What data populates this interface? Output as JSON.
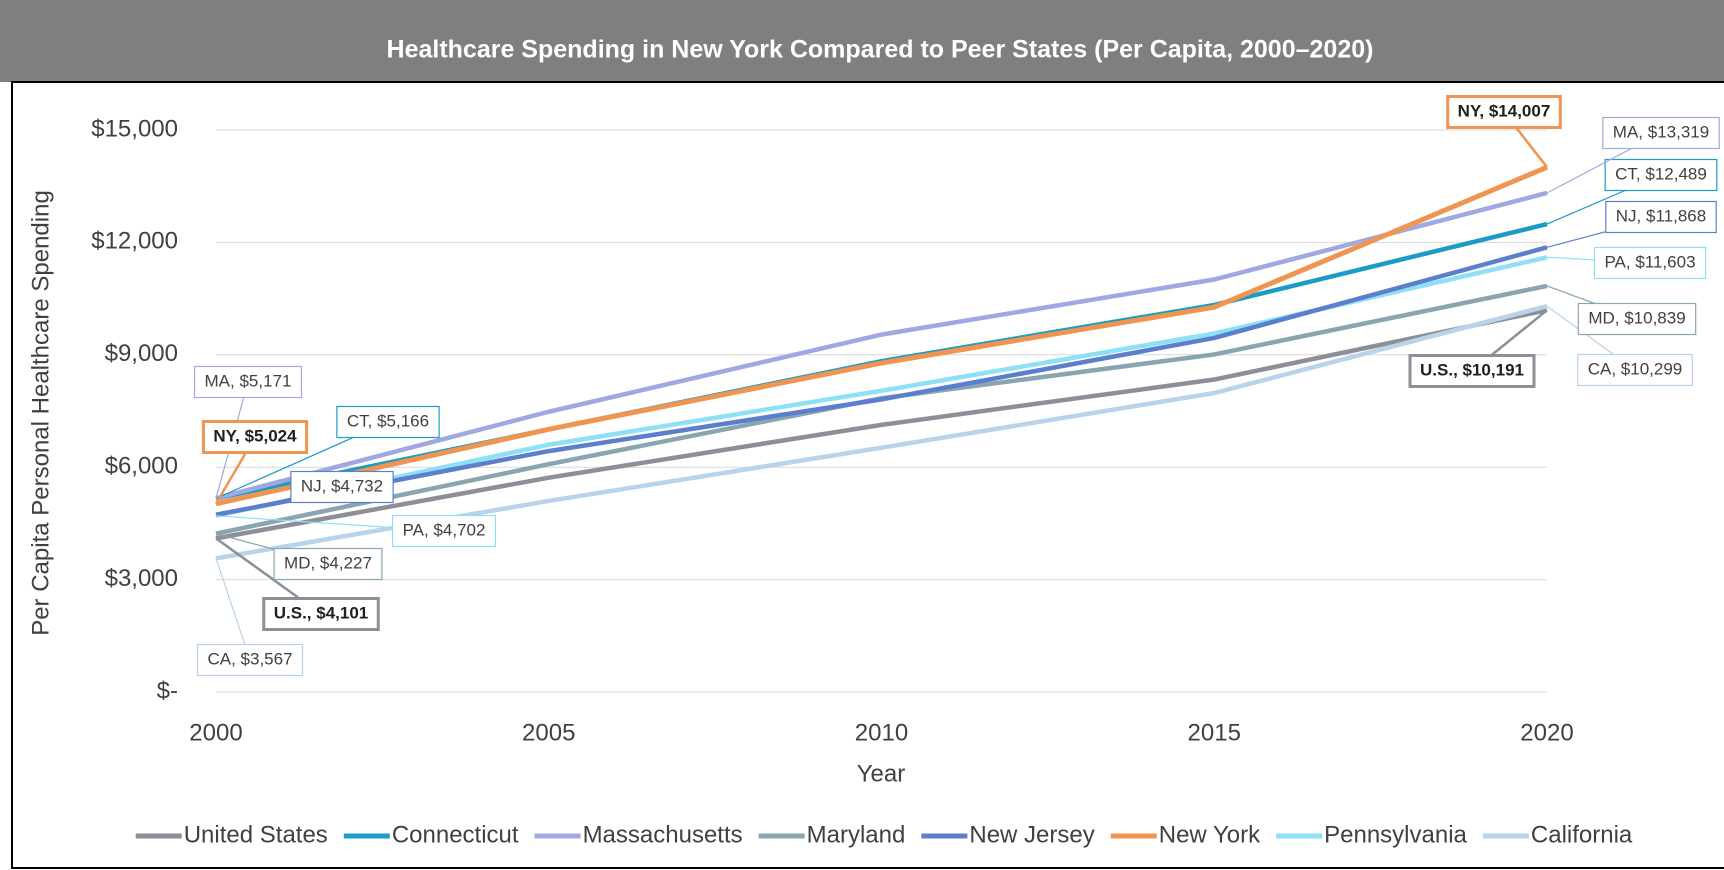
{
  "chart_data": {
    "type": "line",
    "title": "Healthcare Spending in New York Compared to Peer States (Per Capita, 2000–2020)",
    "x_label": "Year",
    "y_label": "Per Capita Personal Healthcare Spending",
    "x": [
      2000,
      2005,
      2010,
      2015,
      2020
    ],
    "xlim": [
      2000,
      2020
    ],
    "xticks": [
      2000,
      2005,
      2010,
      2015,
      2020
    ],
    "ylim": [
      0,
      15000
    ],
    "yticks": [
      {
        "value": 0,
        "label": "$-"
      },
      {
        "value": 3000,
        "label": "$3,000"
      },
      {
        "value": 6000,
        "label": "$6,000"
      },
      {
        "value": 9000,
        "label": "$9,000"
      },
      {
        "value": 12000,
        "label": "$12,000"
      },
      {
        "value": 15000,
        "label": "$15,000"
      }
    ],
    "grid": true,
    "legend": "bottom",
    "series": [
      {
        "name": "United States",
        "color": "#8e8e98",
        "values": [
          4101,
          5720,
          7130,
          8340,
          10191
        ],
        "value_labels": [
          "U.S.,  $4,101",
          null,
          null,
          null,
          "U.S.,  $10,191"
        ]
      },
      {
        "name": "Connecticut",
        "color": "#1b9cc6",
        "values": [
          5166,
          7010,
          8830,
          10330,
          12489
        ],
        "value_labels": [
          "CT,  $5,166",
          null,
          null,
          null,
          "CT,  $12,489"
        ]
      },
      {
        "name": "Massachusetts",
        "color": "#9fa8e0",
        "values": [
          5171,
          7480,
          9540,
          11010,
          13319
        ],
        "value_labels": [
          "MA,  $5,171",
          null,
          null,
          null,
          "MA,  $13,319"
        ]
      },
      {
        "name": "Maryland",
        "color": "#8aa5b0",
        "values": [
          4227,
          6080,
          7840,
          9010,
          10839
        ],
        "value_labels": [
          "MD,  $4,227",
          null,
          null,
          null,
          "MD,  $10,839"
        ]
      },
      {
        "name": "New Jersey",
        "color": "#5b7fcc",
        "values": [
          4732,
          6430,
          7810,
          9450,
          11868
        ],
        "value_labels": [
          "NJ,  $4,732",
          null,
          null,
          null,
          "NJ,  $11,868"
        ]
      },
      {
        "name": "New York",
        "color": "#f0954f",
        "values": [
          5024,
          7010,
          8780,
          10270,
          14007
        ],
        "value_labels": [
          "NY,  $5,024",
          null,
          null,
          null,
          "NY,  $14,007"
        ]
      },
      {
        "name": "Pennsylvania",
        "color": "#8ee0f8",
        "values": [
          4702,
          6600,
          8040,
          9570,
          11603
        ],
        "value_labels": [
          "PA,  $4,702",
          null,
          null,
          null,
          "PA,  $11,603"
        ]
      },
      {
        "name": "California",
        "color": "#b9d3ea",
        "values": [
          3567,
          5100,
          6520,
          7980,
          10299
        ],
        "value_labels": [
          "CA,  $3,567",
          null,
          null,
          null,
          "CA,  $10,299"
        ]
      }
    ]
  }
}
